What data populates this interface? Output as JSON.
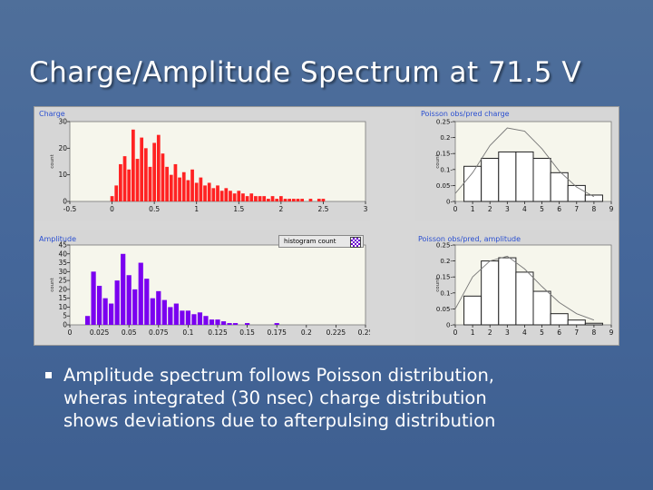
{
  "slide": {
    "title": "Charge/Amplitude Spectrum at 71.5 V",
    "bullet_lines": [
      "Amplitude spectrum follows Poisson distribution,",
      "wheras integrated (30 nsec) charge distribution",
      "shows deviations due to afterpulsing distribution"
    ]
  },
  "colors": {
    "charge_bars": "#ff2222",
    "amplitude_bars": "#7a00f0",
    "plot_background": "#f6f6ec",
    "histogram_bars": "#222222",
    "poisson_curve": "#777777"
  },
  "chart_data": [
    {
      "id": "charge",
      "type": "bar",
      "title": "Charge",
      "ylabel": "count",
      "xlabel": "",
      "xlim": [
        -0.5,
        3
      ],
      "ylim": [
        0,
        30
      ],
      "xticks": [
        -0.5,
        0,
        0.5,
        1,
        1.5,
        2,
        2.5,
        3
      ],
      "xtick_labels": [
        "-0.5",
        "0",
        "0.5",
        "1",
        "1.5",
        "2",
        "2.5",
        "3"
      ],
      "yticks": [
        0,
        10,
        20,
        30
      ],
      "grid": false,
      "x": [
        0.0,
        0.05,
        0.1,
        0.15,
        0.2,
        0.25,
        0.3,
        0.35,
        0.4,
        0.45,
        0.5,
        0.55,
        0.6,
        0.65,
        0.7,
        0.75,
        0.8,
        0.85,
        0.9,
        0.95,
        1.0,
        1.05,
        1.1,
        1.15,
        1.2,
        1.25,
        1.3,
        1.35,
        1.4,
        1.45,
        1.5,
        1.55,
        1.6,
        1.65,
        1.7,
        1.75,
        1.8,
        1.85,
        1.9,
        1.95,
        2.0,
        2.05,
        2.1,
        2.15,
        2.2,
        2.25,
        2.3,
        2.35,
        2.4,
        2.45,
        2.5
      ],
      "values": [
        2,
        6,
        14,
        17,
        12,
        27,
        16,
        24,
        20,
        13,
        22,
        25,
        18,
        13,
        10,
        14,
        9,
        11,
        8,
        12,
        7,
        9,
        6,
        7,
        5,
        6,
        4,
        5,
        4,
        3,
        4,
        3,
        2,
        3,
        2,
        2,
        2,
        1,
        2,
        1,
        2,
        1,
        1,
        1,
        1,
        1,
        0,
        1,
        0,
        1,
        1
      ]
    },
    {
      "id": "poisson_charge",
      "type": "bar",
      "title": "Poisson obs/pred charge",
      "ylabel": "count",
      "xlabel": "",
      "xlim": [
        0,
        9
      ],
      "ylim": [
        0,
        0.25
      ],
      "xticks": [
        0,
        1,
        2,
        3,
        4,
        5,
        6,
        7,
        8,
        9
      ],
      "yticks": [
        0,
        0.05,
        0.1,
        0.15,
        0.2,
        0.25
      ],
      "ytick_labels": [
        "0-",
        "0.05-",
        "0.1-",
        "0.15-",
        "0.2-",
        "0.25-"
      ],
      "grid": false,
      "categories": [
        1,
        2,
        3,
        4,
        5,
        6,
        7,
        8
      ],
      "observed": [
        0.11,
        0.135,
        0.155,
        0.155,
        0.135,
        0.09,
        0.05,
        0.02
      ],
      "predicted": [
        0.025,
        0.09,
        0.175,
        0.23,
        0.22,
        0.165,
        0.095,
        0.045,
        0.015
      ]
    },
    {
      "id": "amplitude",
      "type": "bar",
      "title": "Amplitude",
      "legend": "histogram count",
      "legend_position": "top-right",
      "ylabel": "count",
      "xlabel": "",
      "xlim": [
        0,
        0.25
      ],
      "ylim": [
        0,
        45
      ],
      "xticks": [
        0,
        0.025,
        0.05,
        0.075,
        0.1,
        0.125,
        0.15,
        0.175,
        0.2,
        0.225,
        0.25
      ],
      "yticks": [
        0,
        5,
        10,
        15,
        20,
        25,
        30,
        35,
        40,
        45
      ],
      "grid": false,
      "x": [
        0.015,
        0.02,
        0.025,
        0.03,
        0.035,
        0.04,
        0.045,
        0.05,
        0.055,
        0.06,
        0.065,
        0.07,
        0.075,
        0.08,
        0.085,
        0.09,
        0.095,
        0.1,
        0.105,
        0.11,
        0.115,
        0.12,
        0.125,
        0.13,
        0.135,
        0.14,
        0.15,
        0.175
      ],
      "values": [
        5,
        30,
        22,
        15,
        12,
        25,
        40,
        28,
        20,
        35,
        26,
        15,
        19,
        14,
        10,
        12,
        8,
        8,
        6,
        7,
        5,
        3,
        3,
        2,
        1,
        1,
        1,
        1
      ]
    },
    {
      "id": "poisson_amplitude",
      "type": "bar",
      "title": "Poisson obs/pred, amplitude",
      "ylabel": "count",
      "xlabel": "",
      "xlim": [
        0,
        9
      ],
      "ylim": [
        0,
        0.25
      ],
      "xticks": [
        0,
        1,
        2,
        3,
        4,
        5,
        6,
        7,
        8,
        9
      ],
      "yticks": [
        0,
        0.05,
        0.1,
        0.15,
        0.2,
        0.25
      ],
      "ytick_labels": [
        "0-",
        "0.05-",
        "0.1-",
        "0.15-",
        "0.2-",
        "0.25-"
      ],
      "grid": false,
      "categories": [
        1,
        2,
        3,
        4,
        5,
        6,
        7,
        8
      ],
      "observed": [
        0.09,
        0.2,
        0.21,
        0.165,
        0.105,
        0.035,
        0.015,
        0.005
      ],
      "predicted": [
        0.05,
        0.15,
        0.2,
        0.215,
        0.175,
        0.12,
        0.07,
        0.035,
        0.015
      ]
    }
  ]
}
